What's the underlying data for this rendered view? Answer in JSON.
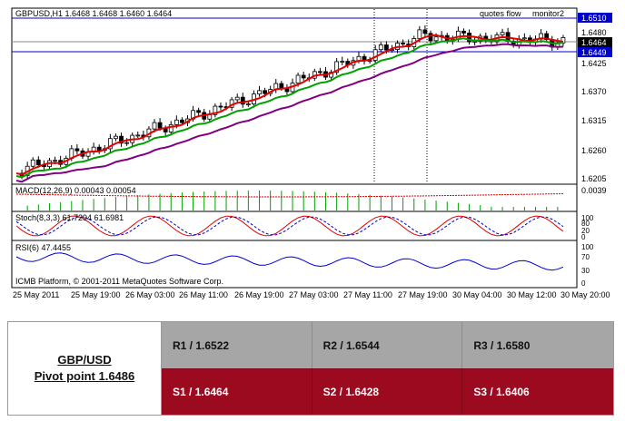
{
  "chart_header": "GBPUSD,H1  1.6468 1.6468 1.6460 1.6464",
  "chart_labels": {
    "quotes_flow": "quotes flow",
    "monitor": "monitor2",
    "copyright": "ICMB Platform, © 2001-2011 MetaQuotes Software Corp."
  },
  "price_axis": {
    "ticks": [
      "1.6480",
      "1.6425",
      "1.6370",
      "1.6315",
      "1.6260",
      "1.6205"
    ],
    "highlight_upper": "1.6510",
    "highlight_current": "1.6464",
    "highlight_lower": "1.6449"
  },
  "macd": {
    "label": "MACD(12,26,9) 0.00043 0.00054",
    "tick": "0.0039"
  },
  "stoch": {
    "label": "Stoch(8,3,3) 61.7294 61.6981",
    "ticks": [
      "100",
      "80",
      "20",
      "0"
    ]
  },
  "rsi": {
    "label": "RSI(6) 47.4455",
    "ticks": [
      "100",
      "70",
      "30",
      "0"
    ]
  },
  "time_axis": [
    "25 May 2011",
    "25 May 19:00",
    "26 May 03:00",
    "26 May 11:00",
    "26 May 19:00",
    "27 May 03:00",
    "27 May 11:00",
    "27 May 19:00",
    "30 May 04:00",
    "30 May 12:00",
    "30 May 20:00"
  ],
  "colors": {
    "bull_candle": "#ffffff",
    "bear_candle": "#000000",
    "ma_fast": "#e00000",
    "ma_mid": "#00a000",
    "ma_slow": "#800080",
    "level_line": "#0000cc",
    "macd_bar": "#00a000",
    "macd_signal": "#e00000",
    "pivot_resistance_bg": "#a6a6a6",
    "pivot_support_bg": "#9c0a1f"
  },
  "pivot_table": {
    "pair": "GBP/USD",
    "pivot": "Pivot point 1.6486",
    "resistance": [
      "R1 / 1.6522",
      "R2 / 1.6544",
      "R3 / 1.6580"
    ],
    "support": [
      "S1 / 1.6464",
      "S2 / 1.6428",
      "S3 / 1.6406"
    ]
  }
}
